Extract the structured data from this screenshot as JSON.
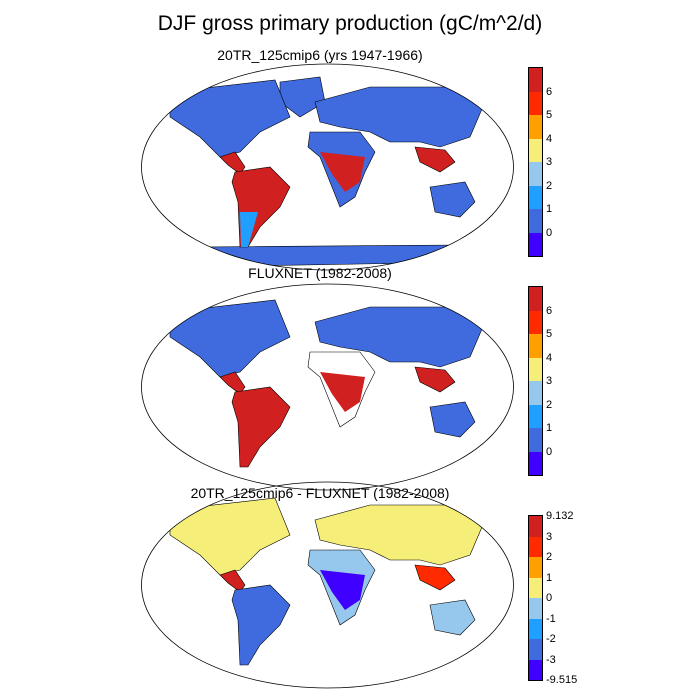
{
  "title": "DJF gross primary production (gC/m^2/d)",
  "panels": [
    {
      "title": "20TR_125cmip6 (yrs 1947-1966)",
      "colorbar": {
        "colors": [
          "#3f00ff",
          "#3f6bdf",
          "#1f9fff",
          "#96c8ee",
          "#f5ee78",
          "#ffa000",
          "#ff2a00",
          "#d02020"
        ],
        "labels": [
          "0",
          "1",
          "2",
          "3",
          "4",
          "5",
          "6"
        ]
      }
    },
    {
      "title": "FLUXNET (1982-2008)",
      "colorbar": {
        "colors": [
          "#3f00ff",
          "#3f6bdf",
          "#1f9fff",
          "#96c8ee",
          "#f5ee78",
          "#ffa000",
          "#ff2a00",
          "#d02020"
        ],
        "labels": [
          "0",
          "1",
          "2",
          "3",
          "4",
          "5",
          "6"
        ]
      }
    },
    {
      "title": "20TR_125cmip6 - FLUXNET (1982-2008)",
      "colorbar": {
        "colors": [
          "#3f00ff",
          "#3f6bdf",
          "#1f9fff",
          "#96c8ee",
          "#f5ee78",
          "#ffa000",
          "#ff2a00",
          "#d02020"
        ],
        "labels": [
          "-9.515",
          "-3",
          "-2",
          "-1",
          "0",
          "1",
          "2",
          "3",
          "9.132"
        ]
      }
    }
  ]
}
